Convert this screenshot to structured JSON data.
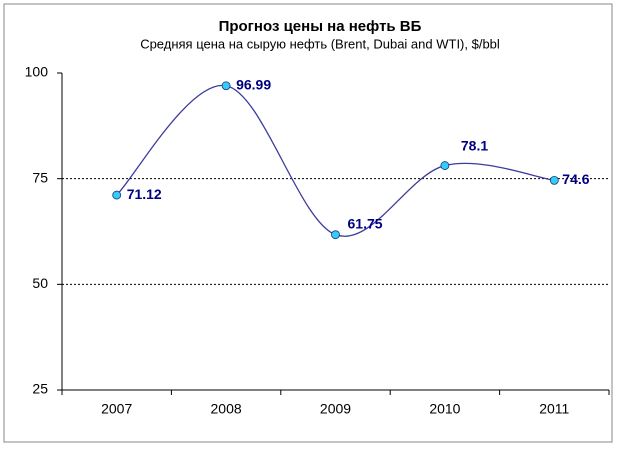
{
  "chart_data": {
    "type": "line",
    "title": "Прогноз цены на нефть ВБ",
    "subtitle": "Средняя цена на сырую нефть (Brent, Dubai and WTI), $/bbl",
    "categories": [
      "2007",
      "2008",
      "2009",
      "2010",
      "2011"
    ],
    "values": [
      71.12,
      96.99,
      61.75,
      78.1,
      74.6
    ],
    "color": "#3c3c9c",
    "marker_color": "#33ccff",
    "label_color": "#000080",
    "ylim": [
      25,
      100
    ],
    "yticks": [
      25,
      50,
      75,
      100
    ],
    "grid": true,
    "smooth": true
  }
}
